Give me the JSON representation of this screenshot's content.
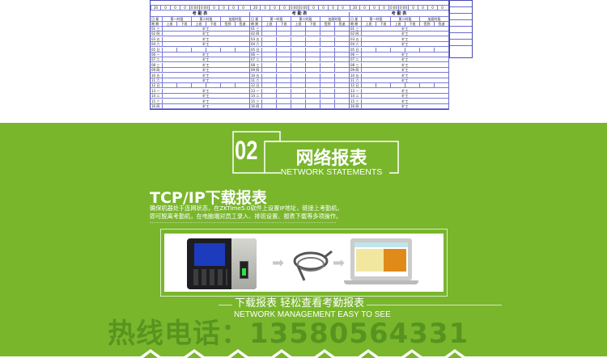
{
  "report": {
    "title": "考 勤 表",
    "col_date": "日 星",
    "col_week": "期 期",
    "periods": [
      "第一时段",
      "第二时段",
      "加班时段"
    ],
    "sub_headers": [
      "上班",
      "下班",
      "上班",
      "下班",
      "签到",
      "签退"
    ],
    "top_row_values": [
      "20",
      "0",
      "0",
      "0",
      "0:00",
      "0:00",
      "0",
      "0",
      "0",
      "0"
    ],
    "rows": [
      {
        "day": "01",
        "week": "三",
        "status": "旷工"
      },
      {
        "day": "02",
        "week": "四",
        "status": "旷工"
      },
      {
        "day": "03",
        "week": "五",
        "status": "旷工"
      },
      {
        "day": "04",
        "week": "六",
        "status": "旷工"
      },
      {
        "day": "05",
        "week": "日",
        "status": ""
      },
      {
        "day": "06",
        "week": "一",
        "status": "旷工"
      },
      {
        "day": "07",
        "week": "二",
        "status": "旷工"
      },
      {
        "day": "08",
        "week": "三",
        "status": "旷工"
      },
      {
        "day": "09",
        "week": "四",
        "status": "旷工"
      },
      {
        "day": "10",
        "week": "五",
        "status": "旷工"
      },
      {
        "day": "11",
        "week": "六",
        "status": "旷工"
      },
      {
        "day": "12",
        "week": "日",
        "status": ""
      },
      {
        "day": "13",
        "week": "一",
        "status": "旷工"
      },
      {
        "day": "14",
        "week": "二",
        "status": "旷工"
      },
      {
        "day": "15",
        "week": "三",
        "status": "旷工"
      },
      {
        "day": "16",
        "week": "四",
        "status": "旷工"
      }
    ]
  },
  "section": {
    "number": "02",
    "title": "网络报表",
    "title_en": "NETWORK STATEMENTS"
  },
  "feature": {
    "heading": "TCP/IP下载报表",
    "desc_line1": "确保机器处于连网状态，在ZKTime5.0软件上设置IP地址，链接上考勤机，",
    "desc_line2": "即可脱离考勤机，在电脑端对员工录入、排班设置、报表下载等多项操作。"
  },
  "watermark": "热线电话：13580564331",
  "tagline": {
    "cn": "下载报表 轻松查看考勤报表",
    "en": "NETWORK MANAGEMENT EASY TO SEE"
  },
  "colors": {
    "green": "#79b62c",
    "table_line": "#6a6ad0"
  }
}
